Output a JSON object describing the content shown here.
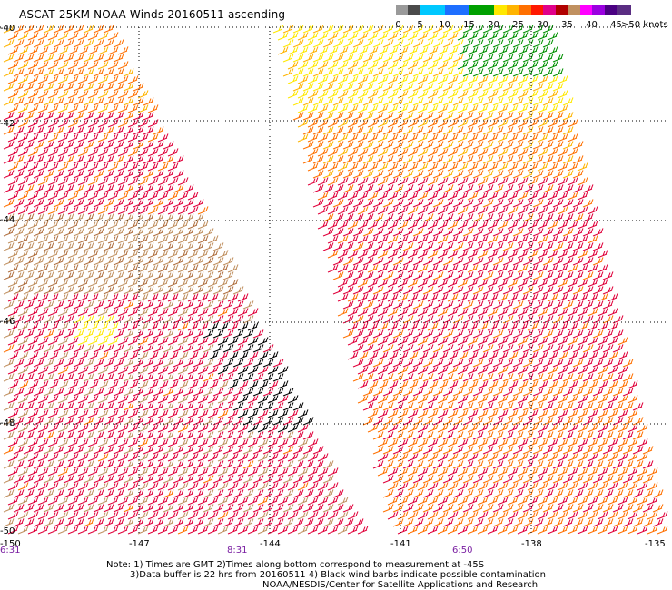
{
  "title": "ASCAT 25KM NOAA Winds 20160511 ascending",
  "legend": {
    "colors": [
      "#4a4a4a",
      "#9a9a9a",
      "#00c8ff",
      "#1e6fff",
      "#00a000",
      "#ffe800",
      "#ffb400",
      "#ff7000",
      "#ff1800",
      "#e0008a",
      "#b00000",
      "#c09060",
      "#ff00ff",
      "#9a00e0",
      "#4b0082",
      "#5a2d82"
    ],
    "labels": [
      "0",
      "5",
      "10",
      "15",
      "20",
      "25",
      "30",
      "35",
      "40",
      "45",
      ">50 knots"
    ]
  },
  "lat_labels": [
    "-40",
    "-42",
    "-44",
    "-46",
    "-48",
    "-50"
  ],
  "lon_labels": [
    "-150",
    "-147",
    "-144",
    "-141",
    "-138",
    "-135"
  ],
  "time_labels": [
    "6:31",
    "8:31",
    "6:50"
  ],
  "notes": {
    "line1": "Note: 1) Times are GMT 2)Times along bottom correspond to measurement at -45S",
    "line2": "3)Data buffer is 22 hrs from 20160511 4) Black wind barbs indicate possible contamination",
    "line3": "NOAA/NESDIS/Center for Satellite Applications and Research"
  }
}
